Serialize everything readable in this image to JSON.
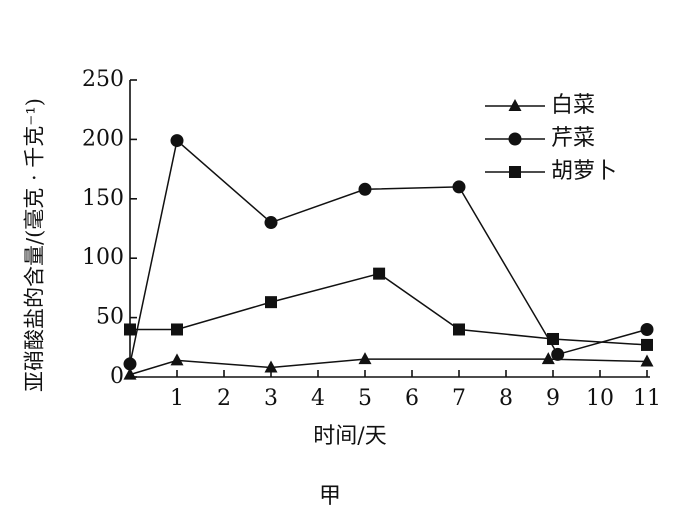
{
  "chart_data": {
    "type": "line",
    "y_label": "亚硝酸盐的含量/(毫克 · 千克⁻¹)",
    "x_label": "时间/天",
    "caption": "甲",
    "xlim": [
      0,
      11
    ],
    "xticks": [
      1,
      2,
      3,
      4,
      5,
      6,
      7,
      8,
      9,
      10,
      11
    ],
    "ylim": [
      0,
      250
    ],
    "yticks": [
      0,
      50,
      100,
      150,
      200,
      250
    ],
    "legend": "upper right",
    "series": [
      {
        "name": "白菜",
        "color": "#111111",
        "marker": "triangle",
        "x": [
          0,
          1,
          3,
          5,
          8.9,
          11
        ],
        "values": [
          2,
          14,
          8,
          15,
          15,
          13
        ]
      },
      {
        "name": "芹菜",
        "color": "#111111",
        "marker": "circle",
        "x": [
          0,
          1,
          3,
          5,
          7,
          9.1,
          11
        ],
        "values": [
          11,
          199,
          130,
          158,
          160,
          19,
          40
        ]
      },
      {
        "name": "胡萝卜",
        "color": "#111111",
        "marker": "square",
        "x": [
          0,
          1,
          3,
          5.3,
          7,
          9,
          11
        ],
        "values": [
          40,
          40,
          63,
          87,
          40,
          32,
          27
        ]
      }
    ]
  }
}
